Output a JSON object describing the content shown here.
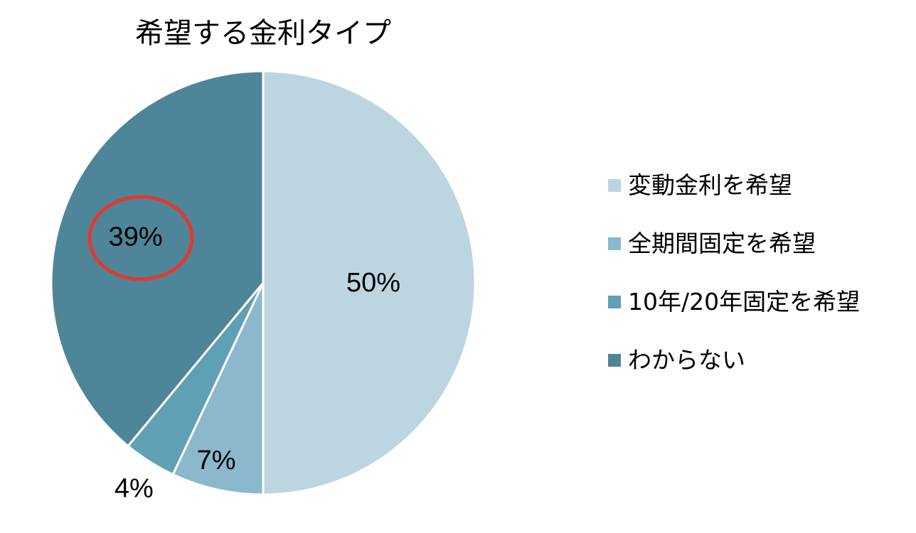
{
  "chart_data": {
    "type": "pie",
    "title": "希望する金利タイプ",
    "categories": [
      "変動金利を希望",
      "全期間固定を希望",
      "10年/20年固定を希望",
      "わからない"
    ],
    "values": [
      50,
      7,
      4,
      39
    ],
    "data_labels": [
      "50%",
      "7%",
      "4%",
      "39%"
    ],
    "colors": [
      "#bdd5e0",
      "#8bb8cc",
      "#5fa0b5",
      "#4f8598"
    ],
    "start_angle": "12 o'clock",
    "direction": "clockwise",
    "legend_position": "right",
    "highlighted_label": "39%",
    "highlight_color": "#e03a2f"
  }
}
